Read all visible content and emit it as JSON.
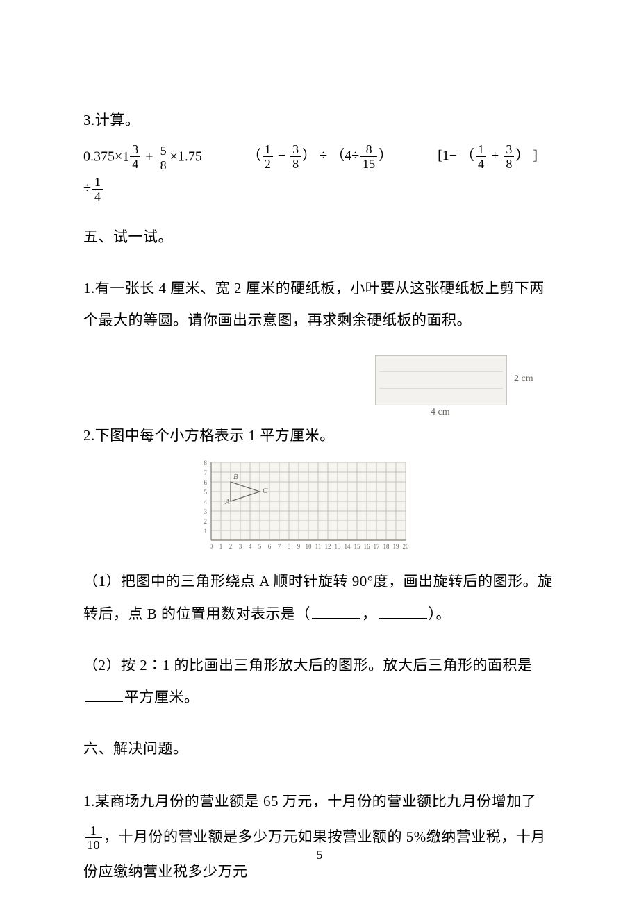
{
  "q3": {
    "title": "3.计算。",
    "eq1_a": "0.375×",
    "eq1_mixed_whole": "1",
    "eq1_mixed_num": "3",
    "eq1_mixed_den": "4",
    "eq1_b": " + ",
    "eq1_f2_num": "5",
    "eq1_f2_den": "8",
    "eq1_c": "×1.75",
    "eq2_a": "（",
    "eq2_f1_num": "1",
    "eq2_f1_den": "2",
    "eq2_b": " − ",
    "eq2_f2_num": "3",
    "eq2_f2_den": "8",
    "eq2_c": "） ÷ （4÷",
    "eq2_f3_num": "8",
    "eq2_f3_den": "15",
    "eq2_d": "）",
    "eq3_a": "[1− （",
    "eq3_f1_num": "1",
    "eq3_f1_den": "4",
    "eq3_b": " + ",
    "eq3_f2_num": "3",
    "eq3_f2_den": "8",
    "eq3_c": "） ]",
    "eq3_cont_a": "÷",
    "eq3_cont_num": "1",
    "eq3_cont_den": "4"
  },
  "s5": {
    "heading": "五、试一试。",
    "q1": "1.有一张长 4 厘米、宽 2 厘米的硬纸板，小叶要从这张硬纸板上剪下两个最大的等圆。请你画出示意图，再求剩余硬纸板的面积。",
    "rect": {
      "width_label": "4 cm",
      "height_label": "2 cm",
      "box_bg": "#f3f2ee",
      "box_border": "#c8c6c0",
      "label_color": "#6d6a63"
    },
    "q2_title": "2.下图中每个小方格表示 1 平方厘米。",
    "grid": {
      "cols": 20,
      "rows": 8,
      "cell": 14,
      "origin_x": 24,
      "origin_y": 6,
      "line_color": "#c7c4bb",
      "axis_color": "#928f86",
      "text_color": "#6f6c64",
      "bg_color": "#f6f5f0",
      "triangle_color": "#6b6860",
      "x_ticks": [
        "0",
        "1",
        "2",
        "3",
        "4",
        "5",
        "6",
        "7",
        "8",
        "9",
        "10",
        "11",
        "12",
        "13",
        "14",
        "15",
        "16",
        "17",
        "18",
        "19",
        "20"
      ],
      "y_ticks": [
        "1",
        "2",
        "3",
        "4",
        "5",
        "6",
        "7",
        "8"
      ],
      "triangle": {
        "A": [
          2,
          4
        ],
        "B": [
          2,
          6
        ],
        "C": [
          5,
          5
        ]
      },
      "labels": {
        "A": "A",
        "B": "B",
        "C": "C"
      }
    },
    "q2_p1_a": "（1）把图中的三角形绕点 A 顺时针旋转 90°度，画出旋转后的图形。旋转后，点 B 的位置用数对表示是（",
    "q2_p1_b": "，",
    "q2_p1_c": "）。",
    "q2_p2_a": "（2）按 2∶1 的比画出三角形放大后的图形。放大后三角形的面积是",
    "q2_p2_b": "平方厘米。"
  },
  "s6": {
    "heading": "六、解决问题。",
    "q1_a": "1.某商场九月份的营业额是 65 万元，十月份的营业额比九月份增加了",
    "q1_frac_num": "1",
    "q1_frac_den": "10",
    "q1_b": "，十月份的营业额是多少万元如果按营业额的 5%缴纳营业税，十月份应缴纳营业税多少万元"
  },
  "page_number": "5"
}
